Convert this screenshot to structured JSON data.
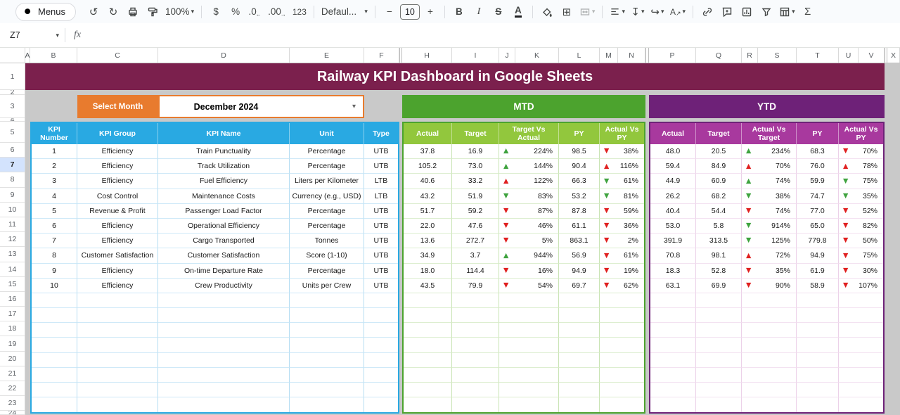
{
  "toolbar": {
    "menus_label": "Menus",
    "zoom_value": "100%",
    "currency_label": "$",
    "percent_label": "%",
    "decrease_decimal_label": ".0",
    "increase_decimal_label": ".00",
    "more_formats_label": "123",
    "font_name": "Defaul...",
    "font_size_value": "10",
    "bold_label": "B",
    "italic_label": "I",
    "strikethrough_label": "S",
    "text_color_label": "A",
    "functions_label": "Σ"
  },
  "formula_bar": {
    "name_box_value": "Z7",
    "fx_label": "fx",
    "formula_value": ""
  },
  "icons": {
    "undo": "↺",
    "redo": "↻",
    "chevron_down": "▾",
    "borders": "⊞",
    "vertical_align": "↧",
    "text_wrap": "↪",
    "text_rotation_arrow": "↗",
    "minus": "−",
    "plus": "+",
    "arrow_up": "▲",
    "arrow_down": "▼",
    "decrease_decimal_arrow": "←",
    "increase_decimal_arrow": "→"
  },
  "sheet": {
    "column_letters": [
      "A",
      "B",
      "C",
      "D",
      "E",
      "F",
      "H",
      "I",
      "J",
      "K",
      "L",
      "M",
      "N",
      "P",
      "Q",
      "R",
      "S",
      "T",
      "U",
      "V",
      "X"
    ],
    "row_numbers": [
      "1",
      "2",
      "3",
      "4",
      "5",
      "6",
      "7",
      "8",
      "9",
      "10",
      "11",
      "12",
      "13",
      "14",
      "15",
      "16",
      "17",
      "18",
      "19",
      "20",
      "21",
      "22",
      "23",
      "24"
    ],
    "selected_row": "7",
    "title": "Railway KPI Dashboard in Google Sheets",
    "select_month_label": "Select Month",
    "selected_month": "December 2024",
    "mtd_label": "MTD",
    "ytd_label": "YTD",
    "left_headers": [
      "KPI Number",
      "KPI Group",
      "KPI Name",
      "Unit",
      "Type"
    ],
    "mtd_headers": [
      "Actual",
      "Target",
      "Target Vs Actual",
      "PY",
      "Actual Vs PY"
    ],
    "ytd_headers": [
      "Actual",
      "Target",
      "Actual Vs Target",
      "PY",
      "Actual Vs PY"
    ],
    "colors": {
      "title_bg": "#7b204d",
      "accent_orange": "#e87b2e",
      "header_blue": "#29a9e2",
      "mtd_green": "#4ca32e",
      "mtd_light_green": "#92c73d",
      "ytd_purple": "#6e2178",
      "ytd_magenta": "#a8399e",
      "arrow_green": "#3fa33f",
      "arrow_red": "#e02020",
      "selected_row_bg": "#d3e3fd"
    },
    "kpis": [
      {
        "number": "1",
        "group": "Efficiency",
        "name": "Train Punctuality",
        "unit": "Percentage",
        "type": "UTB",
        "mtd": {
          "actual": "37.8",
          "target": "16.9",
          "tva_arrow": "up-green",
          "tva": "224%",
          "py": "98.5",
          "avp_arrow": "down-red",
          "avp": "38%"
        },
        "ytd": {
          "actual": "48.0",
          "target": "20.5",
          "avt_arrow": "up-green",
          "avt": "234%",
          "py": "68.3",
          "avp_arrow": "down-red",
          "avp": "70%"
        }
      },
      {
        "number": "2",
        "group": "Efficiency",
        "name": "Track Utilization",
        "unit": "Percentage",
        "type": "UTB",
        "mtd": {
          "actual": "105.2",
          "target": "73.0",
          "tva_arrow": "up-green",
          "tva": "144%",
          "py": "90.4",
          "avp_arrow": "up-red",
          "avp": "116%"
        },
        "ytd": {
          "actual": "59.4",
          "target": "84.9",
          "avt_arrow": "up-red",
          "avt": "70%",
          "py": "76.0",
          "avp_arrow": "up-red",
          "avp": "78%"
        }
      },
      {
        "number": "3",
        "group": "Efficiency",
        "name": "Fuel Efficiency",
        "unit": "Liters per Kilometer",
        "type": "LTB",
        "mtd": {
          "actual": "40.6",
          "target": "33.2",
          "tva_arrow": "up-red",
          "tva": "122%",
          "py": "66.3",
          "avp_arrow": "down-green",
          "avp": "61%"
        },
        "ytd": {
          "actual": "44.9",
          "target": "60.9",
          "avt_arrow": "up-green",
          "avt": "74%",
          "py": "59.9",
          "avp_arrow": "down-green",
          "avp": "75%"
        }
      },
      {
        "number": "4",
        "group": "Cost Control",
        "name": "Maintenance Costs",
        "unit": "Currency (e.g., USD)",
        "type": "LTB",
        "mtd": {
          "actual": "43.2",
          "target": "51.9",
          "tva_arrow": "down-green",
          "tva": "83%",
          "py": "53.2",
          "avp_arrow": "down-green",
          "avp": "81%"
        },
        "ytd": {
          "actual": "26.2",
          "target": "68.2",
          "avt_arrow": "down-green",
          "avt": "38%",
          "py": "74.7",
          "avp_arrow": "down-green",
          "avp": "35%"
        }
      },
      {
        "number": "5",
        "group": "Revenue & Profit",
        "name": "Passenger Load Factor",
        "unit": "Percentage",
        "type": "UTB",
        "mtd": {
          "actual": "51.7",
          "target": "59.2",
          "tva_arrow": "down-red",
          "tva": "87%",
          "py": "87.8",
          "avp_arrow": "down-red",
          "avp": "59%"
        },
        "ytd": {
          "actual": "40.4",
          "target": "54.4",
          "avt_arrow": "down-red",
          "avt": "74%",
          "py": "77.0",
          "avp_arrow": "down-red",
          "avp": "52%"
        }
      },
      {
        "number": "6",
        "group": "Efficiency",
        "name": "Operational Efficiency",
        "unit": "Percentage",
        "type": "UTB",
        "mtd": {
          "actual": "22.0",
          "target": "47.6",
          "tva_arrow": "down-red",
          "tva": "46%",
          "py": "61.1",
          "avp_arrow": "down-red",
          "avp": "36%"
        },
        "ytd": {
          "actual": "53.0",
          "target": "5.8",
          "avt_arrow": "down-green",
          "avt": "914%",
          "py": "65.0",
          "avp_arrow": "down-red",
          "avp": "82%"
        }
      },
      {
        "number": "7",
        "group": "Efficiency",
        "name": "Cargo Transported",
        "unit": "Tonnes",
        "type": "UTB",
        "mtd": {
          "actual": "13.6",
          "target": "272.7",
          "tva_arrow": "down-red",
          "tva": "5%",
          "py": "863.1",
          "avp_arrow": "down-red",
          "avp": "2%"
        },
        "ytd": {
          "actual": "391.9",
          "target": "313.5",
          "avt_arrow": "down-green",
          "avt": "125%",
          "py": "779.8",
          "avp_arrow": "down-red",
          "avp": "50%"
        }
      },
      {
        "number": "8",
        "group": "Customer Satisfaction",
        "name": "Customer Satisfaction",
        "unit": "Score (1-10)",
        "type": "UTB",
        "mtd": {
          "actual": "34.9",
          "target": "3.7",
          "tva_arrow": "up-green",
          "tva": "944%",
          "py": "56.9",
          "avp_arrow": "down-red",
          "avp": "61%"
        },
        "ytd": {
          "actual": "70.8",
          "target": "98.1",
          "avt_arrow": "up-red",
          "avt": "72%",
          "py": "94.9",
          "avp_arrow": "down-red",
          "avp": "75%"
        }
      },
      {
        "number": "9",
        "group": "Efficiency",
        "name": "On-time Departure Rate",
        "unit": "Percentage",
        "type": "UTB",
        "mtd": {
          "actual": "18.0",
          "target": "114.4",
          "tva_arrow": "down-red",
          "tva": "16%",
          "py": "94.9",
          "avp_arrow": "down-red",
          "avp": "19%"
        },
        "ytd": {
          "actual": "18.3",
          "target": "52.8",
          "avt_arrow": "down-red",
          "avt": "35%",
          "py": "61.9",
          "avp_arrow": "down-red",
          "avp": "30%"
        }
      },
      {
        "number": "10",
        "group": "Efficiency",
        "name": "Crew Productivity",
        "unit": "Units per Crew",
        "type": "UTB",
        "mtd": {
          "actual": "43.5",
          "target": "79.9",
          "tva_arrow": "down-red",
          "tva": "54%",
          "py": "69.7",
          "avp_arrow": "down-red",
          "avp": "62%"
        },
        "ytd": {
          "actual": "63.1",
          "target": "69.9",
          "avt_arrow": "down-red",
          "avt": "90%",
          "py": "58.9",
          "avp_arrow": "down-red",
          "avp": "107%"
        }
      }
    ],
    "empty_row_count": 8
  }
}
